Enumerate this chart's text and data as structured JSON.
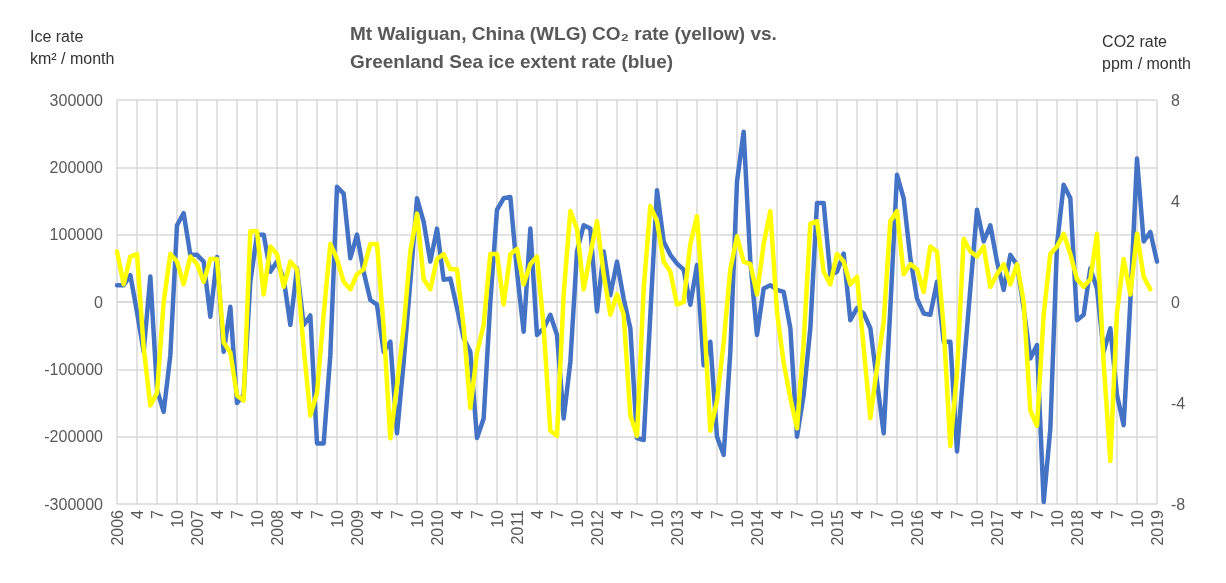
{
  "chart_data": {
    "type": "line",
    "title": "Mt Waliguan, China (WLG) CO₂ rate (yellow) vs. Greenland Sea ice extent rate (blue)",
    "ylabel": "Ice rate\nkm² / month",
    "y2label": "CO2 rate\nppm / month",
    "categories": [
      "2006",
      null,
      null,
      "4",
      null,
      null,
      "7",
      null,
      null,
      "10",
      null,
      null,
      "2007",
      null,
      null,
      "4",
      null,
      null,
      "7",
      null,
      null,
      "10",
      null,
      null,
      "2008",
      null,
      null,
      "4",
      null,
      null,
      "7",
      null,
      null,
      "10",
      null,
      null,
      "2009",
      null,
      null,
      "4",
      null,
      null,
      "7",
      null,
      null,
      "10",
      null,
      null,
      "2010",
      null,
      null,
      "4",
      null,
      null,
      "7",
      null,
      null,
      "10",
      null,
      null,
      "2011",
      null,
      null,
      "4",
      null,
      null,
      "7",
      null,
      null,
      "10",
      null,
      null,
      "2012",
      null,
      null,
      "4",
      null,
      null,
      "7",
      null,
      null,
      "10",
      null,
      null,
      "2013",
      null,
      null,
      "4",
      null,
      null,
      "7",
      null,
      null,
      "10",
      null,
      null,
      "2014",
      null,
      null,
      "4",
      null,
      null,
      "7",
      null,
      null,
      "10",
      null,
      null,
      "2015",
      null,
      null,
      "4",
      null,
      null,
      "7",
      null,
      null,
      "10",
      null,
      null,
      "2016",
      null,
      null,
      "4",
      null,
      null,
      "7",
      null,
      null,
      "10",
      null,
      null,
      "2017",
      null,
      null,
      "4",
      null,
      null,
      "7",
      null,
      null,
      "10",
      null,
      null,
      "2018",
      null,
      null,
      "4",
      null,
      null,
      "7",
      null,
      null,
      "10",
      null,
      null,
      "2019"
    ],
    "series": [
      {
        "color": "#4472c4",
        "values": [
          25000,
          25000,
          40000,
          -15000,
          -74000,
          38000,
          -130000,
          -163000,
          -79000,
          114000,
          132000,
          70000,
          70000,
          60000,
          -22000,
          67000,
          -74000,
          -7000,
          -150000,
          -138000,
          30000,
          100000,
          100000,
          45000,
          60000,
          35000,
          -34000,
          50000,
          -34000,
          -20000,
          -210000,
          -210000,
          -79000,
          171000,
          161000,
          65000,
          100000,
          45000,
          3000,
          -4000,
          -74000,
          -59000,
          -195000,
          -89000,
          30000,
          154000,
          119000,
          60000,
          109000,
          33000,
          35000,
          -9000,
          -54000,
          -74000,
          -202000,
          -173000,
          0,
          137000,
          154000,
          156000,
          45000,
          -44000,
          109000,
          -49000,
          -39000,
          -19000,
          -49000,
          -173000,
          -89000,
          75000,
          114000,
          109000,
          -14000,
          75000,
          10000,
          60000,
          5000,
          -39000,
          -202000,
          -205000,
          -19000,
          166000,
          90000,
          70000,
          57000,
          48000,
          -4000,
          55000,
          -94000,
          -59000,
          -200000,
          -227000,
          -74000,
          179000,
          253000,
          60000,
          -49000,
          20000,
          25000,
          18000,
          15000,
          -39000,
          -200000,
          -138000,
          -39000,
          147000,
          147000,
          40000,
          45000,
          72000,
          -27000,
          -9000,
          -17000,
          -39000,
          -118000,
          -195000,
          -9000,
          189000,
          154000,
          65000,
          5000,
          -17000,
          -19000,
          30000,
          -59000,
          -59000,
          -222000,
          -99000,
          20000,
          137000,
          90000,
          114000,
          60000,
          18000,
          70000,
          55000,
          -9000,
          -84000,
          -64000,
          -297000,
          -188000,
          85000,
          174000,
          154000,
          -27000,
          -19000,
          50000,
          20000,
          -74000,
          -39000,
          -138000,
          -183000,
          0,
          213000,
          90000,
          104000,
          60000
        ]
      },
      {
        "color": "#ffff00",
        "axis": "y2",
        "values": [
          2.0,
          0.7,
          1.8,
          1.9,
          -1.8,
          -4.1,
          -3.6,
          0.0,
          1.9,
          1.6,
          0.7,
          1.8,
          1.5,
          0.8,
          1.7,
          1.7,
          -1.6,
          -2.0,
          -3.7,
          -3.9,
          2.8,
          2.8,
          0.3,
          2.2,
          1.9,
          0.6,
          1.6,
          1.3,
          -1.8,
          -4.5,
          -3.6,
          -0.5,
          2.3,
          1.7,
          0.8,
          0.5,
          1.1,
          1.3,
          2.3,
          2.3,
          -1.0,
          -5.4,
          -3.3,
          -1.0,
          2.0,
          3.5,
          0.9,
          0.5,
          1.7,
          1.9,
          1.3,
          1.3,
          -1.0,
          -4.2,
          -2.0,
          -0.9,
          1.9,
          1.9,
          -0.1,
          1.9,
          2.1,
          0.7,
          1.5,
          1.8,
          -1.0,
          -5.1,
          -5.3,
          0.3,
          3.6,
          2.9,
          0.5,
          1.9,
          3.2,
          1.1,
          -0.5,
          0.3,
          -0.5,
          -4.5,
          -5.3,
          0.5,
          3.8,
          3.2,
          1.6,
          1.2,
          -0.1,
          0.0,
          2.3,
          3.4,
          -0.3,
          -5.1,
          -3.9,
          -1.6,
          1.3,
          2.6,
          1.6,
          1.5,
          0.3,
          2.3,
          3.6,
          -0.4,
          -2.4,
          -3.8,
          -5.0,
          -1.6,
          3.1,
          3.2,
          1.2,
          0.7,
          1.9,
          1.6,
          0.7,
          1.0,
          -1.8,
          -4.6,
          -2.6,
          -0.8,
          3.2,
          3.6,
          1.1,
          1.5,
          1.3,
          0.4,
          2.2,
          2.0,
          -1.0,
          -5.7,
          -2.8,
          2.5,
          2.0,
          1.8,
          2.2,
          0.6,
          1.1,
          1.5,
          0.7,
          1.5,
          0.0,
          -4.3,
          -4.9,
          -0.5,
          1.9,
          2.2,
          2.7,
          1.9,
          0.9,
          0.6,
          0.9,
          2.7,
          -2.4,
          -6.3,
          -0.4,
          1.7,
          0.3,
          2.7,
          1.0,
          0.5,
          null
        ]
      }
    ],
    "ylim": [
      -300000,
      300000
    ],
    "yticks": [
      -300000,
      -200000,
      -100000,
      0,
      100000,
      200000,
      300000
    ],
    "y2lim": [
      -8,
      8
    ],
    "y2ticks": [
      -8,
      -4,
      0,
      4,
      8
    ],
    "grid": true,
    "marker": "none",
    "line_style": "solid"
  }
}
